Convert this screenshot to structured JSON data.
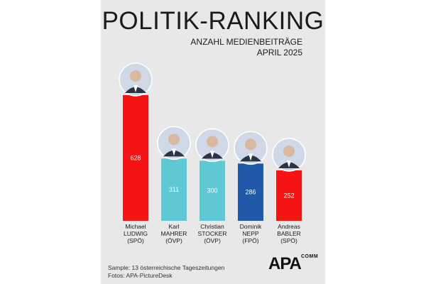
{
  "title": "POLITIK-RANKING",
  "subtitle": [
    "ANZAHL MEDIENBEITRÄGE",
    "APRIL 2025"
  ],
  "footer": {
    "sample": "Sample: 13 österreichische Tageszeitungen",
    "photos": "Fotos: APA-PictureDesk"
  },
  "logo": {
    "main": "APA",
    "sub": "COMM"
  },
  "chart_data": {
    "type": "bar",
    "title": "POLITIK-RANKING",
    "subtitle": "ANZAHL MEDIENBEITRÄGE APRIL 2025",
    "categories": [
      "Michael LUDWIG (SPÖ)",
      "Karl MAHRER (ÖVP)",
      "Christian STOCKER (ÖVP)",
      "Dominik NEPP (FPÖ)",
      "Andreas BABLER (SPÖ)"
    ],
    "category_lines": [
      [
        "Michael",
        "LUDWIG",
        "(SPÖ)"
      ],
      [
        "Karl",
        "MAHRER",
        "(ÖVP)"
      ],
      [
        "Christian",
        "STOCKER",
        "(ÖVP)"
      ],
      [
        "Dominik",
        "NEPP",
        "(FPÖ)"
      ],
      [
        "Andreas",
        "BABLER",
        "(SPÖ)"
      ]
    ],
    "values": [
      628,
      311,
      300,
      286,
      252
    ],
    "bar_colors": [
      "#f41414",
      "#5ec8d4",
      "#5ec8d4",
      "#1f59a8",
      "#f41414"
    ],
    "ylim": [
      0,
      628
    ],
    "grid": false,
    "legend": "none",
    "xlabel": "",
    "ylabel": ""
  }
}
